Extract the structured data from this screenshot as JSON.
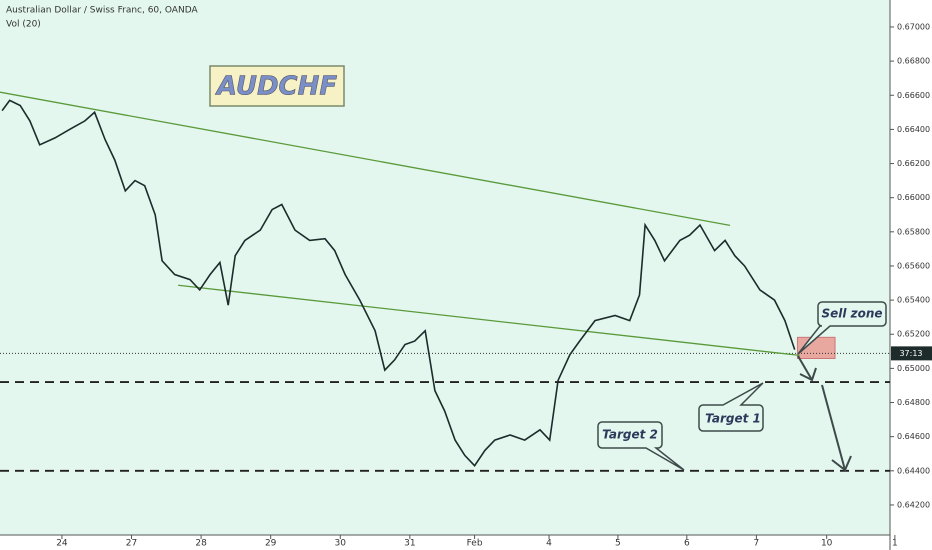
{
  "chart_data": {
    "type": "line",
    "title": "Australian Dollar / Swiss Franc, 60, OANDA",
    "subtitle": "Vol (20)",
    "badge": "AUDCHF",
    "color": "#1e2b2b",
    "x": [
      -0.86,
      -0.75,
      -0.6,
      -0.46,
      -0.32,
      -0.1,
      0.11,
      0.33,
      0.47,
      0.62,
      0.76,
      0.91,
      1.05,
      1.19,
      1.34,
      1.44,
      1.62,
      1.84,
      1.98,
      2.13,
      2.27,
      2.39,
      2.49,
      2.63,
      2.85,
      3.02,
      3.16,
      3.35,
      3.56,
      3.78,
      3.92,
      4.07,
      4.28,
      4.5,
      4.64,
      4.78,
      4.93,
      5.07,
      5.22,
      5.36,
      5.5,
      5.65,
      5.79,
      5.93,
      6.08,
      6.22,
      6.44,
      6.65,
      6.87,
      7.01,
      7.13,
      7.3,
      7.44,
      7.66,
      7.95,
      8.16,
      8.3,
      8.38,
      8.52,
      8.66,
      8.88,
      9.02,
      9.17,
      9.38,
      9.53,
      9.67,
      9.81,
      10.03,
      10.24,
      10.39,
      10.53
    ],
    "values": [
      0.6651,
      0.6657,
      0.6654,
      0.6645,
      0.6631,
      0.6635,
      0.664,
      0.6645,
      0.665,
      0.6634,
      0.6622,
      0.6604,
      0.661,
      0.6607,
      0.659,
      0.6563,
      0.6555,
      0.6552,
      0.6546,
      0.6555,
      0.6562,
      0.6537,
      0.6566,
      0.6575,
      0.6581,
      0.6593,
      0.6596,
      0.6581,
      0.6575,
      0.6576,
      0.6569,
      0.6555,
      0.654,
      0.6522,
      0.6499,
      0.6505,
      0.6514,
      0.6516,
      0.6522,
      0.6487,
      0.6475,
      0.6458,
      0.6449,
      0.6443,
      0.6452,
      0.6458,
      0.6461,
      0.6458,
      0.6464,
      0.6458,
      0.6493,
      0.6508,
      0.6516,
      0.6528,
      0.6531,
      0.6528,
      0.6543,
      0.6584,
      0.6575,
      0.6563,
      0.6575,
      0.6578,
      0.6584,
      0.6569,
      0.6575,
      0.6566,
      0.656,
      0.6546,
      0.654,
      0.6528,
      0.6511
    ],
    "xlim": [
      -0.89,
      11.9
    ],
    "ylim": [
      0.64024,
      0.67158
    ],
    "xticks": [
      {
        "value": 0,
        "label": "24"
      },
      {
        "value": 1,
        "label": "27"
      },
      {
        "value": 2,
        "label": "28"
      },
      {
        "value": 3,
        "label": "29"
      },
      {
        "value": 4,
        "label": "30"
      },
      {
        "value": 5,
        "label": "31"
      },
      {
        "value": 5.93,
        "label": "Feb"
      },
      {
        "value": 7,
        "label": "4"
      },
      {
        "value": 7.99,
        "label": "5"
      },
      {
        "value": 8.98,
        "label": "6"
      },
      {
        "value": 9.98,
        "label": "7"
      },
      {
        "value": 10.99,
        "label": "10"
      },
      {
        "value": 11.97,
        "label": "1"
      }
    ],
    "yticks": [
      {
        "value": 0.67,
        "label": "0.67000"
      },
      {
        "value": 0.668,
        "label": "0.66800"
      },
      {
        "value": 0.666,
        "label": "0.66600"
      },
      {
        "value": 0.664,
        "label": "0.66400"
      },
      {
        "value": 0.662,
        "label": "0.66200"
      },
      {
        "value": 0.66,
        "label": "0.66000"
      },
      {
        "value": 0.658,
        "label": "0.65800"
      },
      {
        "value": 0.656,
        "label": "0.65600"
      },
      {
        "value": 0.654,
        "label": "0.65400"
      },
      {
        "value": 0.652,
        "label": "0.65200"
      },
      {
        "value": 0.65,
        "label": "0.65000"
      },
      {
        "value": 0.648,
        "label": "0.64800"
      },
      {
        "value": 0.646,
        "label": "0.64600"
      },
      {
        "value": 0.644,
        "label": "0.64400"
      },
      {
        "value": 0.642,
        "label": "0.64200"
      }
    ],
    "trendlines": [
      {
        "x": [
          -0.89,
          9.6
        ],
        "values": [
          0.66618,
          0.65838
        ]
      },
      {
        "x": [
          1.67,
          10.6
        ],
        "values": [
          0.65487,
          0.65076
        ]
      }
    ],
    "target_lines": [
      0.6492,
      0.644
    ],
    "last_price": 0.65088,
    "countdown": "37:13",
    "sell_zone": {
      "x": [
        10.57,
        11.11
      ],
      "values": [
        0.65182,
        0.65058
      ]
    },
    "callouts": [
      "Sell zone",
      "Target 1",
      "Target 2"
    ]
  }
}
